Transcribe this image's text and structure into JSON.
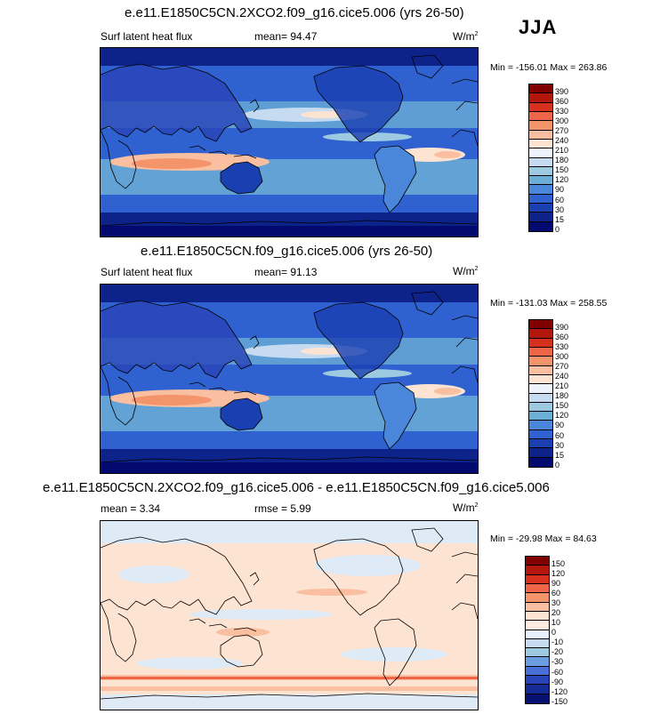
{
  "season": "JJA",
  "panels": [
    {
      "title": "e.e11.E1850C5CN.2XCO2.f09_g16.cice5.006 (yrs 26-50)",
      "left_label": "Surf latent heat flux",
      "center_label": "mean=  94.47",
      "units": "W/m",
      "units_sup": "2",
      "minmax": "Min = -156.01 Max = 263.86",
      "colorbar_labels": [
        "390",
        "360",
        "330",
        "300",
        "270",
        "240",
        "210",
        "180",
        "150",
        "120",
        "90",
        "60",
        "30",
        "15",
        "0"
      ]
    },
    {
      "title": "e.e11.E1850C5CN.f09_g16.cice5.006 (yrs 26-50)",
      "left_label": "Surf latent heat flux",
      "center_label": "mean=  91.13",
      "units": "W/m",
      "units_sup": "2",
      "minmax": "Min = -131.03 Max = 258.55",
      "colorbar_labels": [
        "390",
        "360",
        "330",
        "300",
        "270",
        "240",
        "210",
        "180",
        "150",
        "120",
        "90",
        "60",
        "30",
        "15",
        "0"
      ]
    },
    {
      "title": "e.e11.E1850C5CN.2XCO2.f09_g16.cice5.006 - e.e11.E1850C5CN.f09_g16.cice5.006",
      "left_label": "mean =   3.34",
      "center_label": "rmse =   5.99",
      "units": "W/m",
      "units_sup": "2",
      "minmax": "Min = -29.98 Max = 84.63",
      "colorbar_labels": [
        "150",
        "120",
        "90",
        "60",
        "30",
        "20",
        "10",
        "0",
        "-10",
        "-20",
        "-30",
        "-60",
        "-90",
        "-120",
        "-150"
      ]
    }
  ],
  "colors": {
    "abs_scale": [
      "#800000",
      "#b3160c",
      "#d7301f",
      "#ef6548",
      "#f4946a",
      "#f9bfa0",
      "#fde3d2",
      "#eef3fb",
      "#c6dbef",
      "#9ecae1",
      "#6baed6",
      "#4a87da",
      "#2f62d0",
      "#1a3fb0",
      "#0d238a",
      "#020a70"
    ],
    "diff_scale": [
      "#800000",
      "#b3160c",
      "#d7301f",
      "#ef6548",
      "#f4946a",
      "#f9bfa0",
      "#fde3d2",
      "#fdebe0",
      "#e8f1fb",
      "#c6dbef",
      "#9ecae1",
      "#6b9ee0",
      "#4a6fd6",
      "#2843b8",
      "#142a94",
      "#051070"
    ]
  }
}
